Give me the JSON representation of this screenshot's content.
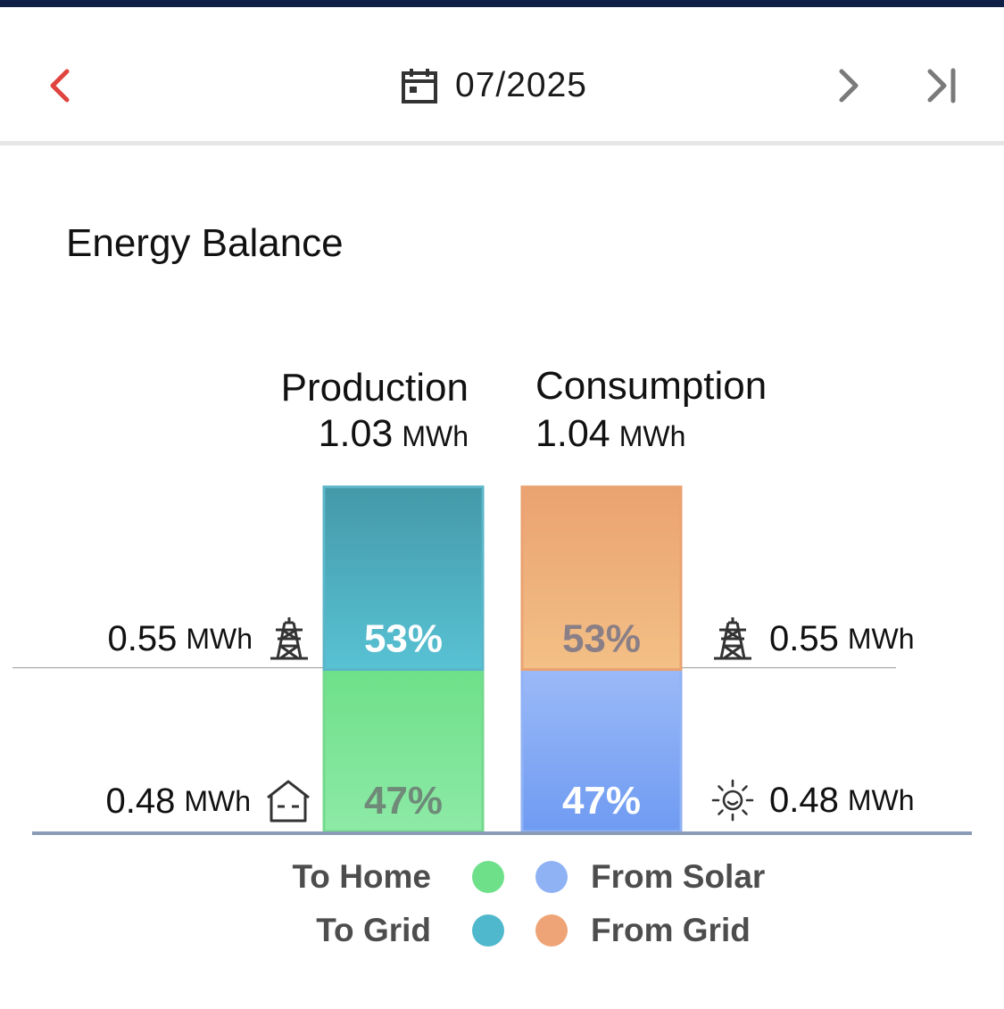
{
  "header": {
    "date": "07/2025",
    "prev_icon": "chevron-left-icon",
    "calendar_icon": "calendar-icon",
    "next_icon": "chevron-right-icon",
    "last_icon": "skip-to-last-icon"
  },
  "card": {
    "title": "Energy Balance"
  },
  "production": {
    "title": "Production",
    "total_value": "1.03",
    "total_unit": "MWh",
    "to_grid_value": "0.55",
    "to_grid_unit": "MWh",
    "to_home_value": "0.48",
    "to_home_unit": "MWh"
  },
  "consumption": {
    "title": "Consumption",
    "total_value": "1.04",
    "total_unit": "MWh",
    "from_grid_value": "0.55",
    "from_grid_unit": "MWh",
    "from_solar_value": "0.48",
    "from_solar_unit": "MWh"
  },
  "legend": {
    "to_home": "To Home",
    "to_grid": "To Grid",
    "from_solar": "From Solar",
    "from_grid": "From Grid"
  },
  "colors": {
    "accent_red": "#e0443e",
    "to_home": "#6ee08a",
    "to_grid": "#4fb8cc",
    "from_solar": "#8fb2f5",
    "from_grid": "#eea476"
  },
  "chart_data": {
    "type": "bar",
    "title": "Energy Balance",
    "categories": [
      "Production",
      "Consumption"
    ],
    "stacked": true,
    "unit": "MWh",
    "totals": [
      1.03,
      1.04
    ],
    "series": [
      {
        "name": "To Home",
        "stack": "Production",
        "value": 0.48,
        "percent": 47,
        "label": "47%",
        "color": "#6ee08a"
      },
      {
        "name": "To Grid",
        "stack": "Production",
        "value": 0.55,
        "percent": 53,
        "label": "53%",
        "color": "#4fb8cc"
      },
      {
        "name": "From Solar",
        "stack": "Consumption",
        "value": 0.48,
        "percent": 47,
        "label": "47%",
        "color": "#8fb2f5"
      },
      {
        "name": "From Grid",
        "stack": "Consumption",
        "value": 0.55,
        "percent": 53,
        "label": "53%",
        "color": "#eea476"
      }
    ],
    "legend": "bottom"
  }
}
